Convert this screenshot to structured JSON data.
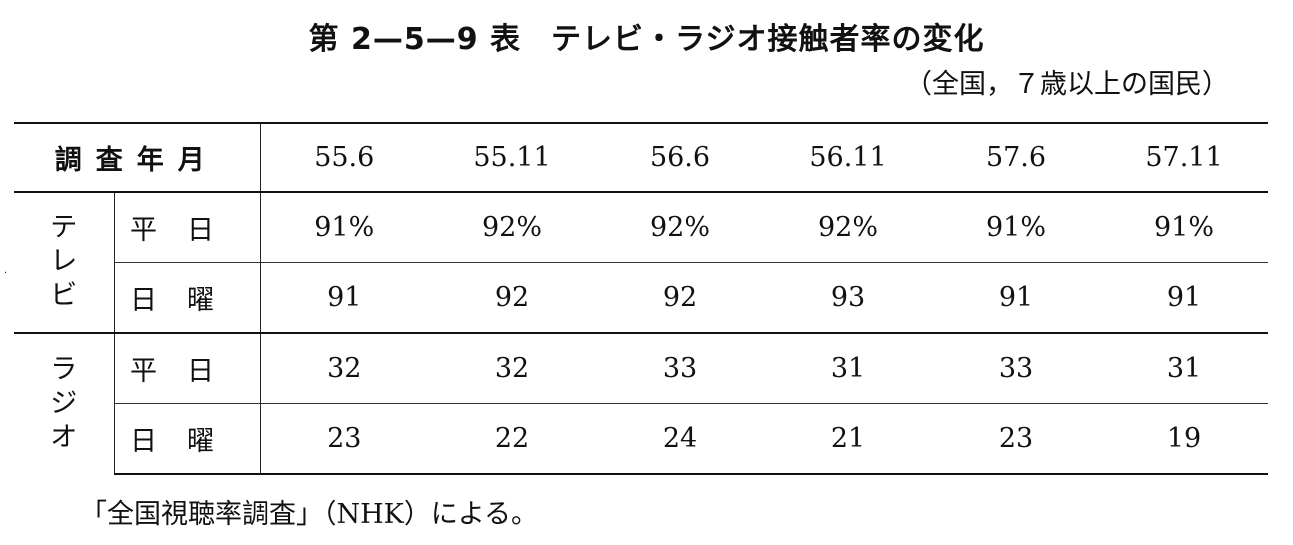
{
  "title": {
    "number": "第 2—5—9 表",
    "text": "テレビ・ラジオ接触者率の変化"
  },
  "scope": "（全国，７歳以上の国民）",
  "table": {
    "header_label": "調査年月",
    "columns": [
      "55.6",
      "55.11",
      "56.6",
      "56.11",
      "57.6",
      "57.11"
    ],
    "groups": [
      {
        "name_chars": [
          "テ",
          "レ",
          "ビ"
        ],
        "rows": [
          {
            "label": "平日",
            "values": [
              "91%",
              "92%",
              "92%",
              "92%",
              "91%",
              "91%"
            ]
          },
          {
            "label": "日曜",
            "values": [
              "91",
              "92",
              "92",
              "93",
              "91",
              "91"
            ]
          }
        ]
      },
      {
        "name_chars": [
          "ラ",
          "ジ",
          "オ"
        ],
        "rows": [
          {
            "label": "平日",
            "values": [
              "32",
              "32",
              "33",
              "31",
              "33",
              "31"
            ]
          },
          {
            "label": "日曜",
            "values": [
              "23",
              "22",
              "24",
              "21",
              "23",
              "19"
            ]
          }
        ]
      }
    ]
  },
  "footnote": "「全国視聴率調査」（NHK）による。"
}
